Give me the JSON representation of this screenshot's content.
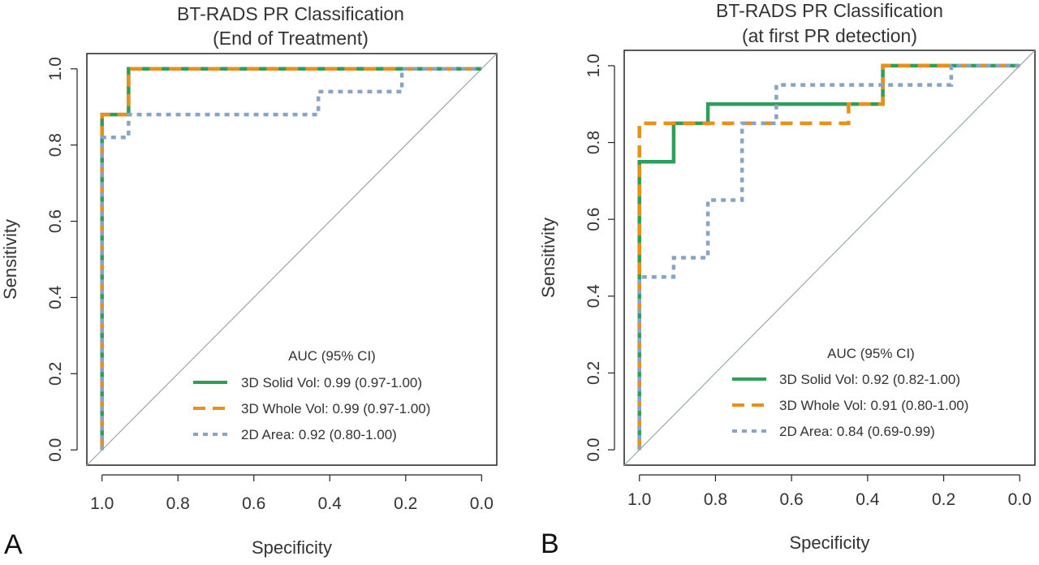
{
  "chart_data": [
    {
      "type": "line",
      "panel_label": "A",
      "title_lines": [
        "BT-RADS PR Classification",
        "(End of Treatment)"
      ],
      "xlabel": "Specificity",
      "ylabel": "Sensitivity",
      "xlim": [
        1.0,
        0.0
      ],
      "ylim": [
        0.0,
        1.0
      ],
      "xticks": [
        "1.0",
        "0.8",
        "0.6",
        "0.4",
        "0.2",
        "0.0"
      ],
      "yticks": [
        "0.0",
        "0.2",
        "0.4",
        "0.6",
        "0.8",
        "1.0"
      ],
      "legend_title": "AUC (95% CI)",
      "legend_position": "bottom-right",
      "grid": false,
      "reference_line": "diagonal",
      "series": [
        {
          "name": "3D Solid Vol: 0.99 (0.97-1.00)",
          "color": "#2e9e5b",
          "style": "solid",
          "points": [
            [
              1.0,
              0.0
            ],
            [
              1.0,
              0.88
            ],
            [
              0.93,
              0.88
            ],
            [
              0.93,
              1.0
            ],
            [
              0.0,
              1.0
            ]
          ]
        },
        {
          "name": "3D Whole Vol: 0.99 (0.97-1.00)",
          "color": "#e8901a",
          "style": "dashed",
          "points": [
            [
              1.0,
              0.0
            ],
            [
              1.0,
              0.88
            ],
            [
              0.93,
              0.88
            ],
            [
              0.93,
              1.0
            ],
            [
              0.0,
              1.0
            ]
          ]
        },
        {
          "name": "2D Area: 0.92 (0.80-1.00)",
          "color": "#8aa5c4",
          "style": "dotted",
          "points": [
            [
              1.0,
              0.0
            ],
            [
              1.0,
              0.82
            ],
            [
              0.93,
              0.82
            ],
            [
              0.93,
              0.88
            ],
            [
              0.43,
              0.88
            ],
            [
              0.43,
              0.94
            ],
            [
              0.21,
              0.94
            ],
            [
              0.21,
              1.0
            ],
            [
              0.0,
              1.0
            ]
          ]
        }
      ]
    },
    {
      "type": "line",
      "panel_label": "B",
      "title_lines": [
        "BT-RADS PR Classification",
        "(at first PR detection)"
      ],
      "xlabel": "Specificity",
      "ylabel": "Sensitivity",
      "xlim": [
        1.0,
        0.0
      ],
      "ylim": [
        0.0,
        1.0
      ],
      "xticks": [
        "1.0",
        "0.8",
        "0.6",
        "0.4",
        "0.2",
        "0.0"
      ],
      "yticks": [
        "0.0",
        "0.2",
        "0.4",
        "0.6",
        "0.8",
        "1.0"
      ],
      "legend_title": "AUC (95% CI)",
      "legend_position": "bottom-right",
      "grid": false,
      "reference_line": "diagonal",
      "series": [
        {
          "name": "3D Solid Vol: 0.92 (0.82-1.00)",
          "color": "#2e9e5b",
          "style": "solid",
          "points": [
            [
              1.0,
              0.0
            ],
            [
              1.0,
              0.75
            ],
            [
              0.91,
              0.75
            ],
            [
              0.91,
              0.85
            ],
            [
              0.82,
              0.85
            ],
            [
              0.82,
              0.9
            ],
            [
              0.36,
              0.9
            ],
            [
              0.36,
              1.0
            ],
            [
              0.0,
              1.0
            ]
          ]
        },
        {
          "name": "3D Whole Vol: 0.91 (0.80-1.00)",
          "color": "#e8901a",
          "style": "dashed",
          "points": [
            [
              1.0,
              0.0
            ],
            [
              1.0,
              0.85
            ],
            [
              0.45,
              0.85
            ],
            [
              0.45,
              0.9
            ],
            [
              0.36,
              0.9
            ],
            [
              0.36,
              1.0
            ],
            [
              0.0,
              1.0
            ]
          ]
        },
        {
          "name": "2D Area: 0.84 (0.69-0.99)",
          "color": "#8aa5c4",
          "style": "dotted",
          "points": [
            [
              1.0,
              0.0
            ],
            [
              1.0,
              0.45
            ],
            [
              0.91,
              0.45
            ],
            [
              0.91,
              0.5
            ],
            [
              0.82,
              0.5
            ],
            [
              0.82,
              0.65
            ],
            [
              0.73,
              0.65
            ],
            [
              0.73,
              0.85
            ],
            [
              0.64,
              0.85
            ],
            [
              0.64,
              0.95
            ],
            [
              0.18,
              0.95
            ],
            [
              0.18,
              1.0
            ],
            [
              0.0,
              1.0
            ]
          ]
        }
      ]
    }
  ]
}
